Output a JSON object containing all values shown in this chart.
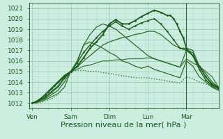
{
  "background_color": "#cceee0",
  "grid_color_major": "#99ccbb",
  "grid_color_minor": "#bbddd0",
  "xlabel": "Pression niveau de la mer( hPa )",
  "xlabel_fontsize": 8,
  "tick_labels_x": [
    "Ven",
    "Sam",
    "Dim",
    "Lun",
    "Mar"
  ],
  "tick_positions_x": [
    0,
    24,
    48,
    72,
    96
  ],
  "ylim": [
    1011.5,
    1021.5
  ],
  "yticks": [
    1012,
    1013,
    1014,
    1015,
    1016,
    1017,
    1018,
    1019,
    1020,
    1021
  ],
  "xlim": [
    -2,
    116
  ],
  "tick_fontsize": 6.5,
  "lines": [
    {
      "x": [
        0,
        2,
        4,
        6,
        8,
        10,
        12,
        14,
        16,
        18,
        20,
        22,
        24,
        28,
        32,
        36,
        40,
        44,
        48,
        52,
        56,
        60,
        64,
        68,
        72,
        76,
        80,
        84,
        86,
        88,
        90,
        92,
        94,
        96,
        100,
        104,
        108,
        112,
        116
      ],
      "y": [
        1012.0,
        1012.1,
        1012.3,
        1012.5,
        1012.8,
        1013.1,
        1013.4,
        1013.7,
        1014.0,
        1014.3,
        1014.6,
        1014.8,
        1015.0,
        1015.5,
        1016.3,
        1017.2,
        1017.8,
        1018.5,
        1019.5,
        1019.9,
        1019.5,
        1019.5,
        1019.8,
        1020.2,
        1020.5,
        1020.8,
        1020.6,
        1020.3,
        1020.3,
        1020.0,
        1019.5,
        1018.8,
        1018.2,
        1017.2,
        1016.5,
        1015.5,
        1014.5,
        1013.8,
        1013.5
      ],
      "style": "-",
      "lw": 1.3,
      "color": "#1a5c1a",
      "marker": ".",
      "ms": 2.0,
      "zorder": 6
    },
    {
      "x": [
        0,
        4,
        8,
        12,
        16,
        20,
        24,
        28,
        32,
        36,
        40,
        44,
        48,
        52,
        56,
        60,
        64,
        68,
        72,
        76,
        80,
        84,
        88,
        92,
        96,
        100,
        104,
        108,
        112,
        116
      ],
      "y": [
        1012.0,
        1012.2,
        1012.6,
        1013.1,
        1013.6,
        1014.4,
        1015.0,
        1015.8,
        1016.8,
        1017.5,
        1018.2,
        1018.8,
        1019.3,
        1019.7,
        1019.3,
        1019.0,
        1019.3,
        1019.6,
        1019.8,
        1020.0,
        1019.5,
        1018.8,
        1018.0,
        1017.2,
        1017.0,
        1016.5,
        1015.2,
        1014.2,
        1013.7,
        1013.4
      ],
      "style": "-",
      "lw": 1.0,
      "color": "#1a5c1a",
      "marker": ".",
      "ms": 1.8,
      "zorder": 5
    },
    {
      "x": [
        0,
        4,
        8,
        12,
        16,
        20,
        24,
        28,
        32,
        36,
        40,
        44,
        48,
        52,
        56,
        60,
        64,
        68,
        72,
        76,
        80,
        84,
        88,
        92,
        96,
        100,
        104,
        108,
        112,
        116
      ],
      "y": [
        1012.0,
        1012.2,
        1012.5,
        1013.0,
        1013.5,
        1014.3,
        1015.0,
        1015.9,
        1017.5,
        1018.5,
        1019.2,
        1019.5,
        1019.3,
        1019.0,
        1018.5,
        1018.0,
        1017.5,
        1017.0,
        1016.5,
        1016.2,
        1016.0,
        1015.8,
        1015.6,
        1015.4,
        1017.0,
        1016.8,
        1015.2,
        1014.2,
        1013.6,
        1013.3
      ],
      "style": "-",
      "lw": 0.9,
      "color": "#2a6c2a",
      "marker": null,
      "ms": 0,
      "zorder": 5
    },
    {
      "x": [
        0,
        4,
        8,
        12,
        16,
        20,
        24,
        28,
        32,
        36,
        40,
        44,
        48,
        52,
        56,
        60,
        64,
        68,
        72,
        76,
        80,
        84,
        88,
        92,
        96,
        100,
        104,
        108,
        112,
        116
      ],
      "y": [
        1012.0,
        1012.3,
        1012.8,
        1013.3,
        1013.9,
        1014.5,
        1015.0,
        1016.0,
        1017.5,
        1017.8,
        1017.5,
        1017.2,
        1016.8,
        1016.5,
        1016.0,
        1015.8,
        1015.5,
        1015.3,
        1015.5,
        1015.2,
        1015.0,
        1014.8,
        1014.6,
        1014.4,
        1016.0,
        1015.5,
        1014.5,
        1014.0,
        1013.5,
        1013.2
      ],
      "style": "-",
      "lw": 0.9,
      "color": "#2a6c2a",
      "marker": null,
      "ms": 0,
      "zorder": 4
    },
    {
      "x": [
        0,
        4,
        8,
        12,
        16,
        20,
        24,
        28,
        32,
        36,
        40,
        44,
        48,
        52,
        56,
        60,
        64,
        68,
        72,
        76,
        80,
        84,
        88,
        92,
        96,
        100,
        104,
        108,
        112,
        116
      ],
      "y": [
        1012.0,
        1012.2,
        1012.4,
        1012.8,
        1013.2,
        1014.0,
        1015.0,
        1015.4,
        1016.0,
        1016.5,
        1017.0,
        1017.5,
        1017.8,
        1018.0,
        1018.2,
        1018.3,
        1018.5,
        1018.6,
        1018.8,
        1018.8,
        1018.5,
        1018.0,
        1017.5,
        1017.2,
        1017.2,
        1017.0,
        1015.5,
        1014.8,
        1014.0,
        1013.5
      ],
      "style": "-",
      "lw": 0.9,
      "color": "#2a6c2a",
      "marker": null,
      "ms": 0,
      "zorder": 4
    },
    {
      "x": [
        0,
        4,
        8,
        12,
        16,
        20,
        24,
        28,
        32,
        36,
        40,
        44,
        48,
        52,
        56,
        60,
        64,
        68,
        72,
        76,
        80,
        84,
        88,
        92,
        96,
        100,
        104,
        108,
        112,
        116
      ],
      "y": [
        1012.0,
        1012.1,
        1012.3,
        1012.6,
        1012.9,
        1013.5,
        1015.0,
        1015.2,
        1015.5,
        1015.6,
        1015.8,
        1016.0,
        1016.0,
        1016.1,
        1016.1,
        1016.2,
        1016.2,
        1016.2,
        1016.3,
        1016.2,
        1016.0,
        1015.8,
        1015.6,
        1015.4,
        1016.2,
        1015.8,
        1015.5,
        1015.0,
        1014.5,
        1013.5
      ],
      "style": "-",
      "lw": 0.9,
      "color": "#3a7c3a",
      "marker": null,
      "ms": 0,
      "zorder": 3
    },
    {
      "x": [
        0,
        4,
        8,
        12,
        16,
        20,
        24,
        28,
        32,
        36,
        40,
        44,
        48,
        52,
        56,
        60,
        64,
        68,
        72,
        76,
        80,
        84,
        88,
        92,
        96,
        100,
        104,
        108,
        112,
        116
      ],
      "y": [
        1012.0,
        1012.0,
        1012.2,
        1012.4,
        1012.8,
        1013.5,
        1015.0,
        1015.1,
        1015.1,
        1015.0,
        1015.0,
        1014.9,
        1014.8,
        1014.7,
        1014.6,
        1014.5,
        1014.4,
        1014.4,
        1014.4,
        1014.3,
        1014.2,
        1014.1,
        1014.0,
        1013.9,
        1014.5,
        1014.3,
        1014.0,
        1013.8,
        1013.6,
        1013.5
      ],
      "style": ":",
      "lw": 1.0,
      "color": "#3a7c3a",
      "marker": null,
      "ms": 0,
      "zorder": 3
    }
  ],
  "vline_x": 96,
  "vline_color": "#336633",
  "vline_lw": 0.8
}
